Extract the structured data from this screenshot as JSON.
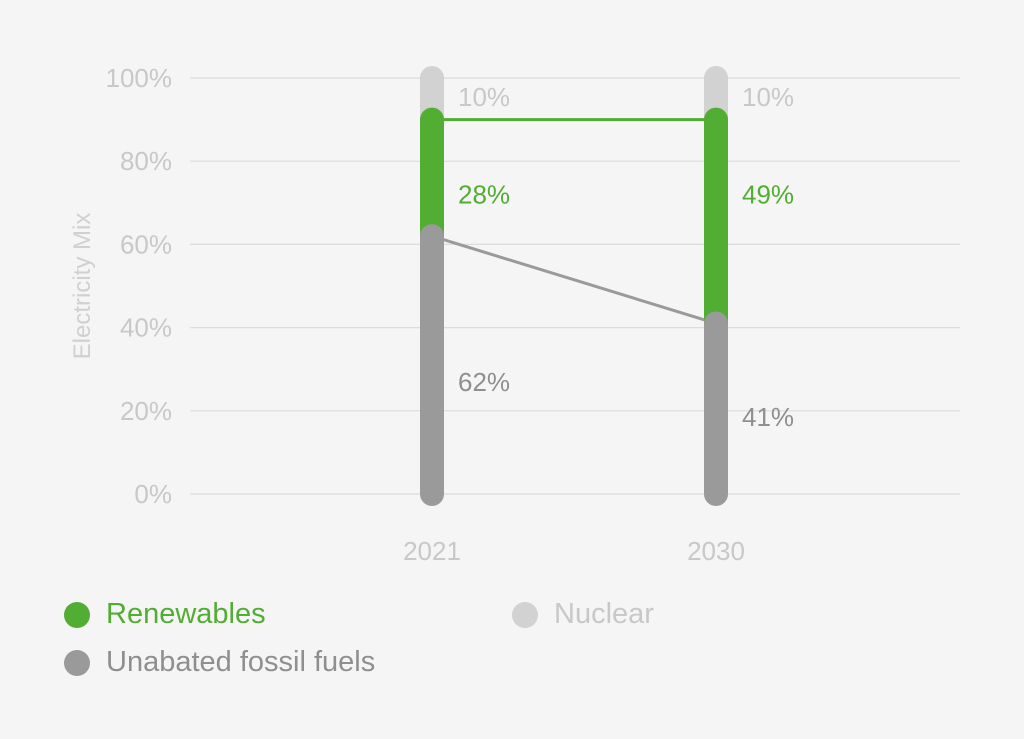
{
  "chart_data": {
    "type": "bar",
    "ylabel": "Electricity Mix",
    "categories": [
      "2021",
      "2030"
    ],
    "y_ticks": [
      "0%",
      "20%",
      "40%",
      "60%",
      "80%",
      "100%"
    ],
    "ylim": [
      0,
      100
    ],
    "grid": true,
    "stacked": true,
    "series": [
      {
        "name": "Unabated fossil fuels",
        "values": [
          62,
          41
        ],
        "labels": [
          "62%",
          "41%"
        ],
        "color": "#9a9a9a"
      },
      {
        "name": "Renewables",
        "values": [
          28,
          49
        ],
        "labels": [
          "28%",
          "49%"
        ],
        "color": "#52ad33"
      },
      {
        "name": "Nuclear",
        "values": [
          10,
          10
        ],
        "labels": [
          "10%",
          "10%"
        ],
        "color": "#d2d2d2"
      }
    ],
    "legend_position": "bottom",
    "legend": [
      {
        "name": "Renewables",
        "color": "#52ad33"
      },
      {
        "name": "Nuclear",
        "color": "#d2d2d2"
      },
      {
        "name": "Unabated fossil fuels",
        "color": "#9a9a9a"
      }
    ]
  }
}
